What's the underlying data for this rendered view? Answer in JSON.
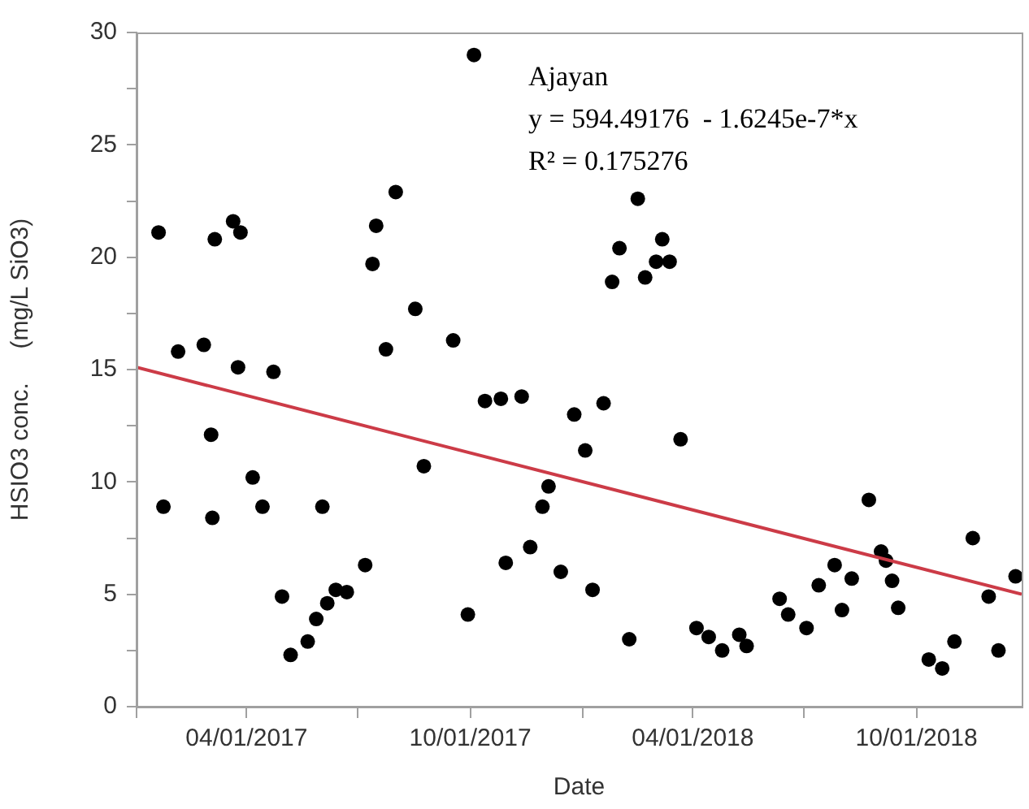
{
  "chart_data": {
    "type": "scatter",
    "xlabel": "Date",
    "ylabel": "HSIO3 conc.     (mg/L SiO3)",
    "annotations": [
      "Ajayan",
      "y = 594.49176  - 1.6245e-7*x",
      "R² = 0.175276"
    ],
    "xlim": [
      "2017-01-01",
      "2018-12-26"
    ],
    "xticks": [
      {
        "value": "2017-01-01",
        "label": null
      },
      {
        "value": "2017-04-01",
        "label": "04/01/2017"
      },
      {
        "value": "2017-07-01",
        "label": null
      },
      {
        "value": "2017-10-01",
        "label": "10/01/2017"
      },
      {
        "value": "2018-01-01",
        "label": null
      },
      {
        "value": "2018-04-01",
        "label": "04/01/2018"
      },
      {
        "value": "2018-07-01",
        "label": null
      },
      {
        "value": "2018-10-01",
        "label": "10/01/2018"
      }
    ],
    "ylim": [
      0,
      30
    ],
    "yticks": [
      0,
      {
        "value": 2.5,
        "label": null
      },
      5,
      {
        "value": 7.5,
        "label": null
      },
      10,
      {
        "value": 12.5,
        "label": null
      },
      15,
      {
        "value": 17.5,
        "label": null
      },
      20,
      {
        "value": 22.5,
        "label": null
      },
      25,
      {
        "value": 27.5,
        "label": null
      },
      30
    ],
    "grid": false,
    "legend": false,
    "marker": "circle",
    "series": [
      {
        "color": "#000000",
        "x": [
          "2017-01-19",
          "2017-01-23",
          "2017-02-04",
          "2017-02-25",
          "2017-03-03",
          "2017-03-06",
          "2017-03-04",
          "2017-03-21",
          "2017-03-27",
          "2017-03-25",
          "2017-04-06",
          "2017-04-14",
          "2017-04-23",
          "2017-04-30",
          "2017-05-07",
          "2017-05-21",
          "2017-05-28",
          "2017-06-02",
          "2017-06-06",
          "2017-06-13",
          "2017-06-22",
          "2017-07-07",
          "2017-07-13",
          "2017-07-16",
          "2017-07-24",
          "2017-08-01",
          "2017-08-17",
          "2017-08-24",
          "2017-09-17",
          "2017-10-04",
          "2017-09-29",
          "2017-10-13",
          "2017-10-26",
          "2017-11-12",
          "2017-10-30",
          "2017-11-19",
          "2017-11-29",
          "2017-12-04",
          "2017-12-14",
          "2017-12-25",
          "2018-01-03",
          "2018-01-18",
          "2018-01-09",
          "2018-01-25",
          "2018-01-31",
          "2018-02-08",
          "2018-02-15",
          "2018-02-21",
          "2018-03-02",
          "2018-03-07",
          "2018-03-13",
          "2018-03-22",
          "2018-04-04",
          "2018-04-14",
          "2018-04-25",
          "2018-05-09",
          "2018-05-15",
          "2018-06-11",
          "2018-06-18",
          "2018-07-03",
          "2018-07-13",
          "2018-07-26",
          "2018-08-01",
          "2018-08-09",
          "2018-08-23",
          "2018-09-02",
          "2018-09-06",
          "2018-09-11",
          "2018-09-16",
          "2018-10-11",
          "2018-10-22",
          "2018-11-01",
          "2018-11-16",
          "2018-11-29",
          "2018-12-07",
          "2018-12-21"
        ],
        "values": [
          21.1,
          8.9,
          15.8,
          16.1,
          12.1,
          20.8,
          8.4,
          21.6,
          21.1,
          15.1,
          10.2,
          8.9,
          14.9,
          4.9,
          2.3,
          2.9,
          3.9,
          8.9,
          4.6,
          5.2,
          5.1,
          6.3,
          19.7,
          21.4,
          15.9,
          22.9,
          17.7,
          10.7,
          16.3,
          29.0,
          4.1,
          13.6,
          13.7,
          13.8,
          6.4,
          7.1,
          8.9,
          9.8,
          6.0,
          13.0,
          11.4,
          13.5,
          5.2,
          18.9,
          20.4,
          3.0,
          22.6,
          19.1,
          19.8,
          20.8,
          19.8,
          11.9,
          3.5,
          3.1,
          2.5,
          3.2,
          2.7,
          4.8,
          4.1,
          3.5,
          5.4,
          6.3,
          4.3,
          5.7,
          9.2,
          6.9,
          6.5,
          5.6,
          4.4,
          2.1,
          1.7,
          2.9,
          7.5,
          4.9,
          2.5,
          5.8
        ]
      },
      {
        "type": "line",
        "marker": "none",
        "color": "#cc3b47",
        "x": [
          "2017-01-01",
          "2018-12-26"
        ],
        "values": [
          15.1,
          5.0
        ]
      }
    ]
  }
}
